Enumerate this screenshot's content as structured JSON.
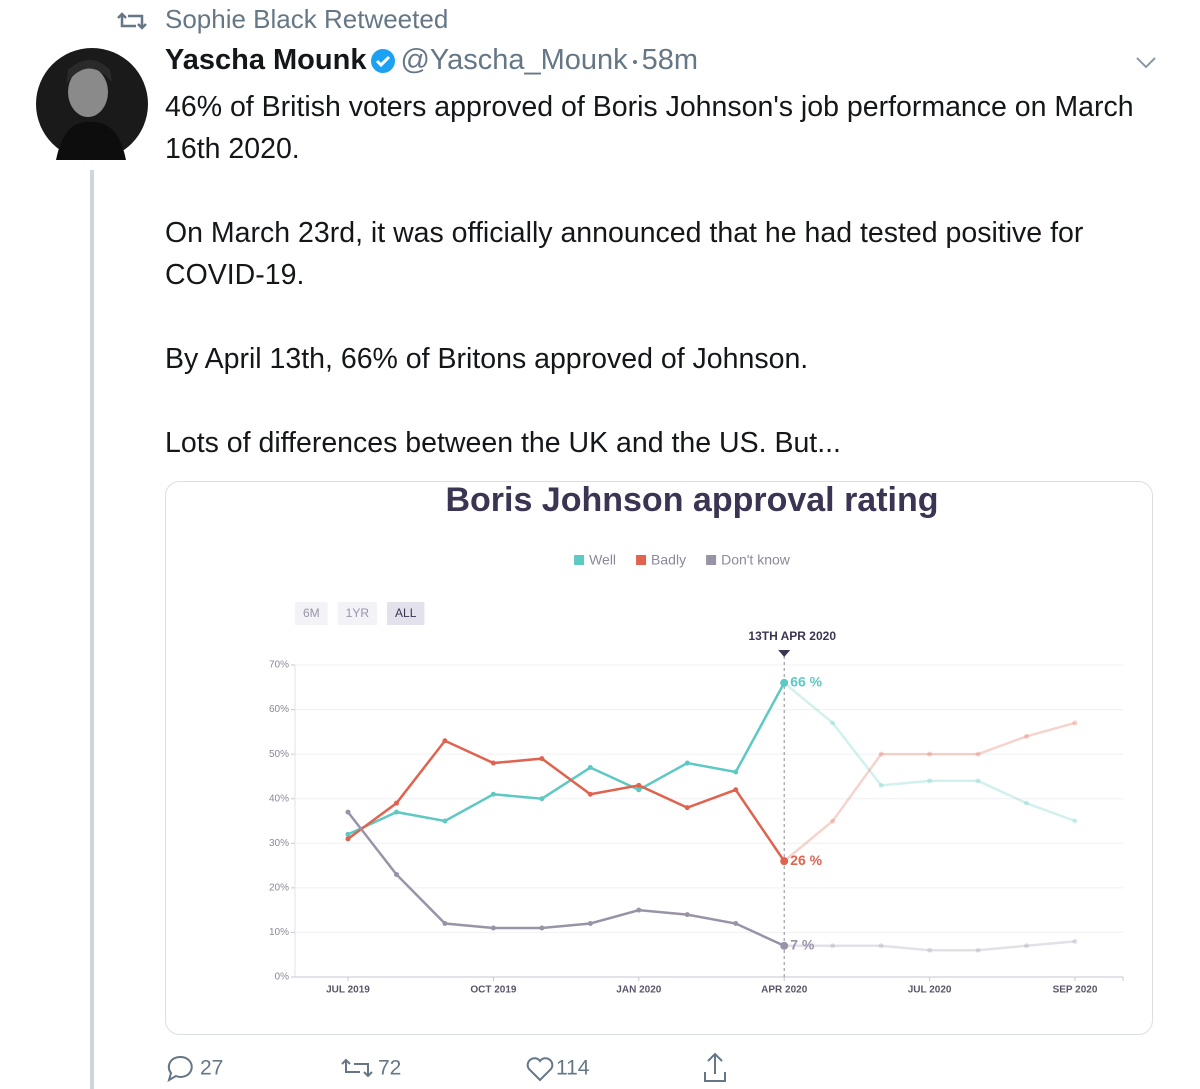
{
  "retweeted_by": "Sophie Black Retweeted",
  "author": {
    "name": "Yascha Mounk",
    "handle": "@Yascha_Mounk",
    "time": "58m"
  },
  "text": [
    "46% of British voters approved of Boris Johnson's job performance on March 16th 2020.",
    "On March 23rd, it was officially announced that he had tested positive for COVID-19.",
    "By April 13th, 66% of Britons approved of Johnson.",
    "Lots of differences between the UK and the US. But..."
  ],
  "actions": {
    "replies": 27,
    "retweets": 72,
    "likes": 114
  },
  "chart_data": {
    "type": "line",
    "title": "Boris Johnson approval rating",
    "range_buttons": [
      "6M",
      "1YR",
      "ALL"
    ],
    "selected_range": "ALL",
    "highlight_date": "13TH APR 2020",
    "categories": [
      "JUL 2019",
      null,
      null,
      "OCT 2019",
      null,
      null,
      "JAN 2020",
      null,
      null,
      "APR 2020",
      null,
      null,
      "JUL 2020",
      null,
      null,
      "SEP 2020"
    ],
    "series": [
      {
        "name": "Well",
        "color": "#5ec8c3",
        "highlight_label": "66 %",
        "values": [
          32,
          37,
          35,
          41,
          40,
          47,
          42,
          48,
          46,
          66,
          57,
          43,
          44,
          44,
          39,
          35
        ]
      },
      {
        "name": "Badly",
        "color": "#e0634f",
        "highlight_label": "26 %",
        "values": [
          31,
          39,
          53,
          48,
          49,
          41,
          43,
          38,
          42,
          26,
          35,
          50,
          50,
          50,
          54,
          57
        ]
      },
      {
        "name": "Don't know",
        "color": "#9a93a8",
        "highlight_label": "7 %",
        "values": [
          37,
          23,
          12,
          11,
          11,
          12,
          15,
          14,
          12,
          7,
          7,
          7,
          6,
          6,
          7,
          8
        ]
      }
    ],
    "ylim": [
      0,
      70
    ],
    "yticks": [
      {
        "value": 0,
        "label": "0%"
      },
      {
        "value": 10,
        "label": "10%"
      },
      {
        "value": 20,
        "label": "20%"
      },
      {
        "value": 30,
        "label": "30%"
      },
      {
        "value": 40,
        "label": "40%"
      },
      {
        "value": 50,
        "label": "50%"
      },
      {
        "value": 60,
        "label": "60%"
      },
      {
        "value": 70,
        "label": "70%"
      }
    ],
    "grid": true,
    "legend": "top"
  }
}
